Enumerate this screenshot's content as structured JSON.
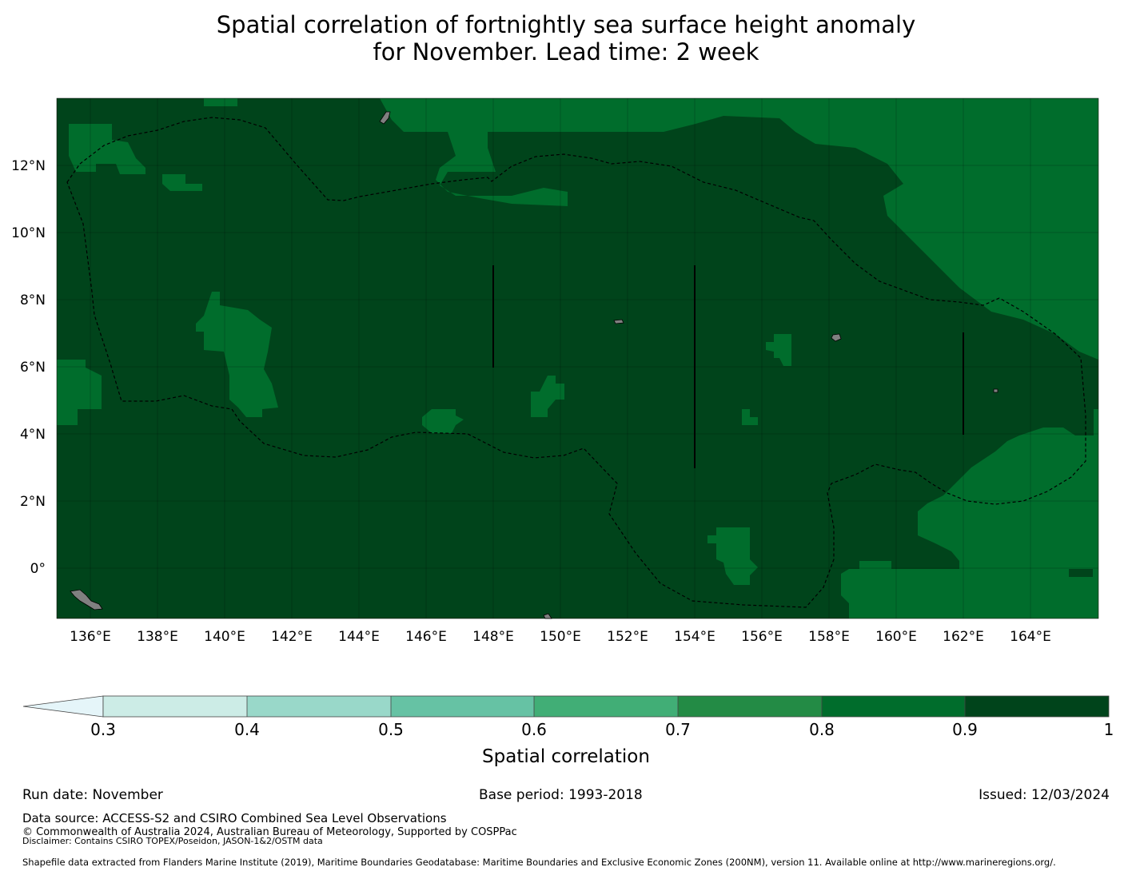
{
  "title": {
    "line1": "Spatial correlation of fortnightly sea surface height anomaly",
    "line2": "for November. Lead time: 2 week"
  },
  "map": {
    "lon_ticks": [
      "136°E",
      "138°E",
      "140°E",
      "142°E",
      "144°E",
      "146°E",
      "148°E",
      "150°E",
      "152°E",
      "154°E",
      "156°E",
      "158°E",
      "160°E",
      "162°E",
      "164°E"
    ],
    "lat_ticks": [
      "12°N",
      "10°N",
      "8°N",
      "6°N",
      "4°N",
      "2°N",
      "0°"
    ],
    "colors": {
      "band_0_9_1": "#00441b",
      "band_0_8_0_9": "#006d2c",
      "land": "#808080",
      "boundary": "#000000"
    }
  },
  "colorbar": {
    "label": "Spatial correlation",
    "ticks": [
      "0.3",
      "0.4",
      "0.5",
      "0.6",
      "0.7",
      "0.8",
      "0.9",
      "1"
    ],
    "colors": [
      "#e5f5f9",
      "#ccece6",
      "#99d8c9",
      "#66c2a4",
      "#41ae76",
      "#238b45",
      "#006d2c",
      "#00441b"
    ]
  },
  "footer": {
    "run_date": "Run date: November",
    "base_period": "Base period: 1993-2018",
    "issued": "Issued: 12/03/2024",
    "data_source": "Data source: ACCESS-S2 and CSIRO Combined Sea Level Observations",
    "copyright": "© Commonwealth of Australia 2024, Australian Bureau of Meteorology, Supported by COSPPac",
    "disclaimer": "Disclaimer: Contains CSIRO TOPEX/Poseidon, JASON-1&2/OSTM data",
    "shapefile": "Shapefile data extracted from Flanders Marine Institute (2019), Maritime Boundaries Geodatabase: Maritime Boundaries and Exclusive Economic Zones (200NM), version 11. Available online at http://www.marineregions.org/."
  }
}
